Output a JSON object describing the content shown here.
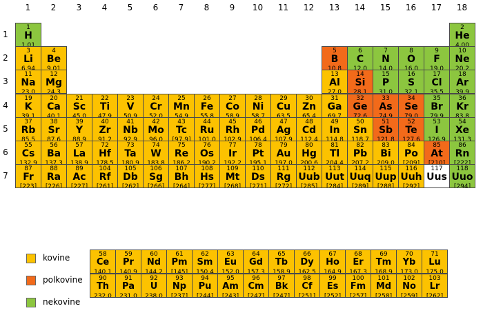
{
  "group_labels": [
    "1",
    "2",
    "3",
    "4",
    "5",
    "6",
    "7",
    "8",
    "9",
    "10",
    "11",
    "12",
    "13",
    "14",
    "15",
    "16",
    "17",
    "18"
  ],
  "period_labels": [
    "1",
    "2",
    "3",
    "4",
    "5",
    "6",
    "7"
  ],
  "colors": {
    "metal": "#fcc200",
    "metalloid": "#f26a1a",
    "nonmetal": "#8cc63f",
    "unknown": "#ffffff"
  },
  "legend": [
    {
      "label": "kovine",
      "category": "metal"
    },
    {
      "label": "polkovine",
      "category": "metalloid"
    },
    {
      "label": "nekovine",
      "category": "nonmetal"
    }
  ],
  "elements": [
    {
      "n": "1",
      "s": "H",
      "m": "1,01",
      "p": 1,
      "g": 1,
      "c": "nonmetal"
    },
    {
      "n": "2",
      "s": "He",
      "m": "4,00",
      "p": 1,
      "g": 18,
      "c": "nonmetal"
    },
    {
      "n": "3",
      "s": "Li",
      "m": "6,94",
      "p": 2,
      "g": 1,
      "c": "metal"
    },
    {
      "n": "4",
      "s": "Be",
      "m": "9,01",
      "p": 2,
      "g": 2,
      "c": "metal"
    },
    {
      "n": "5",
      "s": "B",
      "m": "10,8",
      "p": 2,
      "g": 13,
      "c": "metalloid"
    },
    {
      "n": "6",
      "s": "C",
      "m": "12,0",
      "p": 2,
      "g": 14,
      "c": "nonmetal"
    },
    {
      "n": "7",
      "s": "N",
      "m": "14,0",
      "p": 2,
      "g": 15,
      "c": "nonmetal"
    },
    {
      "n": "8",
      "s": "O",
      "m": "16,0",
      "p": 2,
      "g": 16,
      "c": "nonmetal"
    },
    {
      "n": "9",
      "s": "F",
      "m": "19,0",
      "p": 2,
      "g": 17,
      "c": "nonmetal"
    },
    {
      "n": "10",
      "s": "Ne",
      "m": "20,2",
      "p": 2,
      "g": 18,
      "c": "nonmetal"
    },
    {
      "n": "11",
      "s": "Na",
      "m": "23,0",
      "p": 3,
      "g": 1,
      "c": "metal"
    },
    {
      "n": "12",
      "s": "Mg",
      "m": "24,3",
      "p": 3,
      "g": 2,
      "c": "metal"
    },
    {
      "n": "13",
      "s": "Al",
      "m": "27,0",
      "p": 3,
      "g": 13,
      "c": "metal"
    },
    {
      "n": "14",
      "s": "Si",
      "m": "28,1",
      "p": 3,
      "g": 14,
      "c": "metalloid"
    },
    {
      "n": "15",
      "s": "P",
      "m": "31,0",
      "p": 3,
      "g": 15,
      "c": "nonmetal"
    },
    {
      "n": "16",
      "s": "S",
      "m": "32,1",
      "p": 3,
      "g": 16,
      "c": "nonmetal"
    },
    {
      "n": "17",
      "s": "Cl",
      "m": "35,5",
      "p": 3,
      "g": 17,
      "c": "nonmetal"
    },
    {
      "n": "18",
      "s": "Ar",
      "m": "39,9",
      "p": 3,
      "g": 18,
      "c": "nonmetal"
    },
    {
      "n": "19",
      "s": "K",
      "m": "39,1",
      "p": 4,
      "g": 1,
      "c": "metal"
    },
    {
      "n": "20",
      "s": "Ca",
      "m": "40,1",
      "p": 4,
      "g": 2,
      "c": "metal"
    },
    {
      "n": "21",
      "s": "Sc",
      "m": "45,0",
      "p": 4,
      "g": 3,
      "c": "metal"
    },
    {
      "n": "22",
      "s": "Ti",
      "m": "47,9",
      "p": 4,
      "g": 4,
      "c": "metal"
    },
    {
      "n": "23",
      "s": "V",
      "m": "50,9",
      "p": 4,
      "g": 5,
      "c": "metal"
    },
    {
      "n": "24",
      "s": "Cr",
      "m": "52,0",
      "p": 4,
      "g": 6,
      "c": "metal"
    },
    {
      "n": "25",
      "s": "Mn",
      "m": "54,9",
      "p": 4,
      "g": 7,
      "c": "metal"
    },
    {
      "n": "26",
      "s": "Fe",
      "m": "55,8",
      "p": 4,
      "g": 8,
      "c": "metal"
    },
    {
      "n": "27",
      "s": "Co",
      "m": "58,9",
      "p": 4,
      "g": 9,
      "c": "metal"
    },
    {
      "n": "28",
      "s": "Ni",
      "m": "58,7",
      "p": 4,
      "g": 10,
      "c": "metal"
    },
    {
      "n": "29",
      "s": "Cu",
      "m": "63,5",
      "p": 4,
      "g": 11,
      "c": "metal"
    },
    {
      "n": "30",
      "s": "Zn",
      "m": "65,4",
      "p": 4,
      "g": 12,
      "c": "metal"
    },
    {
      "n": "31",
      "s": "Ga",
      "m": "69,7",
      "p": 4,
      "g": 13,
      "c": "metal"
    },
    {
      "n": "32",
      "s": "Ge",
      "m": "72,6",
      "p": 4,
      "g": 14,
      "c": "metalloid"
    },
    {
      "n": "33",
      "s": "As",
      "m": "74,9",
      "p": 4,
      "g": 15,
      "c": "metalloid"
    },
    {
      "n": "34",
      "s": "Se",
      "m": "79,0",
      "p": 4,
      "g": 16,
      "c": "metalloid"
    },
    {
      "n": "35",
      "s": "Br",
      "m": "79,9",
      "p": 4,
      "g": 17,
      "c": "nonmetal"
    },
    {
      "n": "36",
      "s": "Kr",
      "m": "83,8",
      "p": 4,
      "g": 18,
      "c": "nonmetal"
    },
    {
      "n": "37",
      "s": "Rb",
      "m": "85,5",
      "p": 5,
      "g": 1,
      "c": "metal"
    },
    {
      "n": "38",
      "s": "Sr",
      "m": "87,6",
      "p": 5,
      "g": 2,
      "c": "metal"
    },
    {
      "n": "39",
      "s": "Y",
      "m": "88,9",
      "p": 5,
      "g": 3,
      "c": "metal"
    },
    {
      "n": "40",
      "s": "Zr",
      "m": "91,2",
      "p": 5,
      "g": 4,
      "c": "metal"
    },
    {
      "n": "41",
      "s": "Nb",
      "m": "92,9",
      "p": 5,
      "g": 5,
      "c": "metal"
    },
    {
      "n": "42",
      "s": "Mo",
      "m": "96,0",
      "p": 5,
      "g": 6,
      "c": "metal"
    },
    {
      "n": "43",
      "s": "Tc",
      "m": "[97,9]",
      "p": 5,
      "g": 7,
      "c": "metal"
    },
    {
      "n": "44",
      "s": "Ru",
      "m": "101,0",
      "p": 5,
      "g": 8,
      "c": "metal"
    },
    {
      "n": "45",
      "s": "Rh",
      "m": "102,9",
      "p": 5,
      "g": 9,
      "c": "metal"
    },
    {
      "n": "46",
      "s": "Pd",
      "m": "106,4",
      "p": 5,
      "g": 10,
      "c": "metal"
    },
    {
      "n": "47",
      "s": "Ag",
      "m": "107,9",
      "p": 5,
      "g": 11,
      "c": "metal"
    },
    {
      "n": "48",
      "s": "Cd",
      "m": "112,4",
      "p": 5,
      "g": 12,
      "c": "metal"
    },
    {
      "n": "49",
      "s": "In",
      "m": "114,8",
      "p": 5,
      "g": 13,
      "c": "metal"
    },
    {
      "n": "50",
      "s": "Sn",
      "m": "118,7",
      "p": 5,
      "g": 14,
      "c": "metal"
    },
    {
      "n": "51",
      "s": "Sb",
      "m": "121,8",
      "p": 5,
      "g": 15,
      "c": "metalloid"
    },
    {
      "n": "52",
      "s": "Te",
      "m": "127,6",
      "p": 5,
      "g": 16,
      "c": "metalloid"
    },
    {
      "n": "53",
      "s": "I",
      "m": "126,9",
      "p": 5,
      "g": 17,
      "c": "nonmetal"
    },
    {
      "n": "54",
      "s": "Xe",
      "m": "131,3",
      "p": 5,
      "g": 18,
      "c": "nonmetal"
    },
    {
      "n": "55",
      "s": "Cs",
      "m": "132,9",
      "p": 6,
      "g": 1,
      "c": "metal"
    },
    {
      "n": "56",
      "s": "Ba",
      "m": "137,3",
      "p": 6,
      "g": 2,
      "c": "metal"
    },
    {
      "n": "57",
      "s": "La",
      "m": "138,9",
      "p": 6,
      "g": 3,
      "c": "metal"
    },
    {
      "n": "72",
      "s": "Hf",
      "m": "178,5",
      "p": 6,
      "g": 4,
      "c": "metal"
    },
    {
      "n": "73",
      "s": "Ta",
      "m": "180,9",
      "p": 6,
      "g": 5,
      "c": "metal"
    },
    {
      "n": "74",
      "s": "W",
      "m": "183,8",
      "p": 6,
      "g": 6,
      "c": "metal"
    },
    {
      "n": "75",
      "s": "Re",
      "m": "186,2",
      "p": 6,
      "g": 7,
      "c": "metal"
    },
    {
      "n": "76",
      "s": "Os",
      "m": "190,2",
      "p": 6,
      "g": 8,
      "c": "metal"
    },
    {
      "n": "77",
      "s": "Ir",
      "m": "192,2",
      "p": 6,
      "g": 9,
      "c": "metal"
    },
    {
      "n": "78",
      "s": "Pt",
      "m": "195,1",
      "p": 6,
      "g": 10,
      "c": "metal"
    },
    {
      "n": "79",
      "s": "Au",
      "m": "197,0",
      "p": 6,
      "g": 11,
      "c": "metal"
    },
    {
      "n": "80",
      "s": "Hg",
      "m": "200,6",
      "p": 6,
      "g": 12,
      "c": "metal"
    },
    {
      "n": "81",
      "s": "Tl",
      "m": "204,4",
      "p": 6,
      "g": 13,
      "c": "metal"
    },
    {
      "n": "82",
      "s": "Pb",
      "m": "207,2",
      "p": 6,
      "g": 14,
      "c": "metal"
    },
    {
      "n": "83",
      "s": "Bi",
      "m": "209,0",
      "p": 6,
      "g": 15,
      "c": "metal"
    },
    {
      "n": "84",
      "s": "Po",
      "m": "[209]",
      "p": 6,
      "g": 16,
      "c": "metal"
    },
    {
      "n": "85",
      "s": "At",
      "m": "[210]",
      "p": 6,
      "g": 17,
      "c": "metalloid"
    },
    {
      "n": "86",
      "s": "Rn",
      "m": "[222]",
      "p": 6,
      "g": 18,
      "c": "nonmetal"
    },
    {
      "n": "87",
      "s": "Fr",
      "m": "[223]",
      "p": 7,
      "g": 1,
      "c": "metal"
    },
    {
      "n": "88",
      "s": "Ra",
      "m": "[226]",
      "p": 7,
      "g": 2,
      "c": "metal"
    },
    {
      "n": "89",
      "s": "Ac",
      "m": "[227]",
      "p": 7,
      "g": 3,
      "c": "metal"
    },
    {
      "n": "104",
      "s": "Rf",
      "m": "[261]",
      "p": 7,
      "g": 4,
      "c": "metal"
    },
    {
      "n": "105",
      "s": "Db",
      "m": "[262]",
      "p": 7,
      "g": 5,
      "c": "metal"
    },
    {
      "n": "106",
      "s": "Sg",
      "m": "[266]",
      "p": 7,
      "g": 6,
      "c": "metal"
    },
    {
      "n": "107",
      "s": "Bh",
      "m": "[264]",
      "p": 7,
      "g": 7,
      "c": "metal"
    },
    {
      "n": "108",
      "s": "Hs",
      "m": "[277]",
      "p": 7,
      "g": 8,
      "c": "metal"
    },
    {
      "n": "109",
      "s": "Mt",
      "m": "[268]",
      "p": 7,
      "g": 9,
      "c": "metal"
    },
    {
      "n": "110",
      "s": "Ds",
      "m": "[271]",
      "p": 7,
      "g": 10,
      "c": "metal"
    },
    {
      "n": "111",
      "s": "Rg",
      "m": "[272]",
      "p": 7,
      "g": 11,
      "c": "metal"
    },
    {
      "n": "112",
      "s": "Uub",
      "m": "[285]",
      "p": 7,
      "g": 12,
      "c": "metal"
    },
    {
      "n": "113",
      "s": "Uut",
      "m": "[284]",
      "p": 7,
      "g": 13,
      "c": "metal"
    },
    {
      "n": "114",
      "s": "Uuq",
      "m": "[289]",
      "p": 7,
      "g": 14,
      "c": "metal"
    },
    {
      "n": "115",
      "s": "Uup",
      "m": "[288]",
      "p": 7,
      "g": 15,
      "c": "metal"
    },
    {
      "n": "116",
      "s": "Uuh",
      "m": "[292]",
      "p": 7,
      "g": 16,
      "c": "metal"
    },
    {
      "n": "117",
      "s": "Uus",
      "m": "",
      "p": 7,
      "g": 17,
      "c": "unknown"
    },
    {
      "n": "118",
      "s": "Uuo",
      "m": "[294]",
      "p": 7,
      "g": 18,
      "c": "nonmetal"
    }
  ],
  "lanthanides": [
    {
      "n": "58",
      "s": "Ce",
      "m": "140,1"
    },
    {
      "n": "59",
      "s": "Pr",
      "m": "140,9"
    },
    {
      "n": "60",
      "s": "Nd",
      "m": "144,2"
    },
    {
      "n": "61",
      "s": "Pm",
      "m": "[145]"
    },
    {
      "n": "62",
      "s": "Sm",
      "m": "150,4"
    },
    {
      "n": "63",
      "s": "Eu",
      "m": "152,0"
    },
    {
      "n": "64",
      "s": "Gd",
      "m": "157,3"
    },
    {
      "n": "65",
      "s": "Tb",
      "m": "158,9"
    },
    {
      "n": "66",
      "s": "Dy",
      "m": "162,5"
    },
    {
      "n": "67",
      "s": "Ho",
      "m": "164,9"
    },
    {
      "n": "68",
      "s": "Er",
      "m": "167,3"
    },
    {
      "n": "69",
      "s": "Tm",
      "m": "168,9"
    },
    {
      "n": "70",
      "s": "Yb",
      "m": "173,0"
    },
    {
      "n": "71",
      "s": "Lu",
      "m": "175,0"
    }
  ],
  "actinides": [
    {
      "n": "90",
      "s": "Th",
      "m": "232,0"
    },
    {
      "n": "91",
      "s": "Pa",
      "m": "231,0"
    },
    {
      "n": "92",
      "s": "U",
      "m": "238,0"
    },
    {
      "n": "93",
      "s": "Np",
      "m": "[237]"
    },
    {
      "n": "94",
      "s": "Pu",
      "m": "[244]"
    },
    {
      "n": "95",
      "s": "Am",
      "m": "[243]"
    },
    {
      "n": "96",
      "s": "Cm",
      "m": "[247]"
    },
    {
      "n": "97",
      "s": "Bk",
      "m": "[247]"
    },
    {
      "n": "98",
      "s": "Cf",
      "m": "[251]"
    },
    {
      "n": "99",
      "s": "Es",
      "m": "[252]"
    },
    {
      "n": "100",
      "s": "Fm",
      "m": "[257]"
    },
    {
      "n": "101",
      "s": "Md",
      "m": "[258]"
    },
    {
      "n": "102",
      "s": "No",
      "m": "[259]"
    },
    {
      "n": "103",
      "s": "Lr",
      "m": "[262]"
    }
  ]
}
